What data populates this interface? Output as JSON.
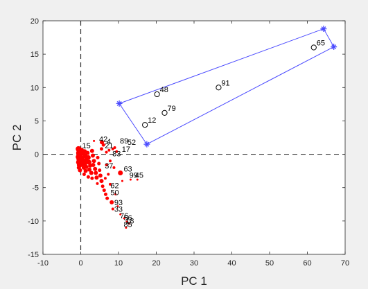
{
  "chart_data": {
    "type": "scatter",
    "xlabel": "PC 1",
    "ylabel": "PC 2",
    "xlim": [
      -10,
      70
    ],
    "ylim": [
      -15,
      20
    ],
    "xticks": [
      -10,
      0,
      10,
      20,
      30,
      40,
      50,
      60,
      70
    ],
    "yticks": [
      -15,
      -10,
      -5,
      0,
      5,
      10,
      15,
      20
    ],
    "reference_lines": {
      "x": 0,
      "y": 0,
      "style": "dashed"
    },
    "colors": {
      "points": "#ff0000",
      "outliers": "#000000",
      "hull": "#4a4aff",
      "background": "#ffffff",
      "figure": "#f0f0f0"
    },
    "outliers": [
      {
        "label": "65",
        "x": 61.7,
        "y": 16.0
      },
      {
        "label": "91",
        "x": 36.5,
        "y": 10.0
      },
      {
        "label": "48",
        "x": 20.2,
        "y": 9.0
      },
      {
        "label": "79",
        "x": 22.2,
        "y": 6.2
      },
      {
        "label": "12",
        "x": 17.0,
        "y": 4.4
      }
    ],
    "hull_vertices": [
      {
        "x": 10.2,
        "y": 7.6
      },
      {
        "x": 64.3,
        "y": 18.8
      },
      {
        "x": 67.0,
        "y": 16.1
      },
      {
        "x": 17.5,
        "y": 1.5
      }
    ],
    "labeled_points": [
      {
        "label": "42",
        "x": 4.5,
        "y": 2.0
      },
      {
        "label": "4",
        "x": 6.5,
        "y": 1.6
      },
      {
        "label": "89",
        "x": 10.0,
        "y": 1.7
      },
      {
        "label": "52",
        "x": 12.0,
        "y": 1.5
      },
      {
        "label": "15",
        "x": 0.0,
        "y": 1.0
      },
      {
        "label": "17",
        "x": 10.5,
        "y": 0.5
      },
      {
        "label": "21",
        "x": 6.0,
        "y": 1.0
      },
      {
        "label": "83",
        "x": 8.0,
        "y": -0.2
      },
      {
        "label": "63",
        "x": 11.0,
        "y": -2.5
      },
      {
        "label": "99",
        "x": 12.5,
        "y": -3.4
      },
      {
        "label": "45",
        "x": 14.0,
        "y": -3.4
      },
      {
        "label": "37",
        "x": 6.0,
        "y": -2.0
      },
      {
        "label": "62",
        "x": 7.5,
        "y": -5.0
      },
      {
        "label": "50",
        "x": 7.5,
        "y": -6.0
      },
      {
        "label": "93",
        "x": 8.5,
        "y": -7.5
      },
      {
        "label": "33",
        "x": 8.5,
        "y": -8.5
      },
      {
        "label": "76",
        "x": 10.0,
        "y": -9.5
      },
      {
        "label": "56",
        "x": 11.0,
        "y": -9.8
      },
      {
        "label": "18",
        "x": 11.5,
        "y": -10.3
      },
      {
        "label": "85",
        "x": 11.0,
        "y": -10.8
      }
    ],
    "points": [
      {
        "x": -0.6,
        "y": 0.8,
        "s": 4
      },
      {
        "x": -0.4,
        "y": 0.5,
        "s": 4
      },
      {
        "x": -0.5,
        "y": 0.2,
        "s": 4
      },
      {
        "x": -0.3,
        "y": -0.1,
        "s": 4
      },
      {
        "x": -0.6,
        "y": -0.4,
        "s": 4
      },
      {
        "x": -0.4,
        "y": -0.8,
        "s": 4
      },
      {
        "x": -0.5,
        "y": -1.2,
        "s": 4
      },
      {
        "x": -0.3,
        "y": -1.6,
        "s": 4
      },
      {
        "x": -0.5,
        "y": -2.0,
        "s": 3
      },
      {
        "x": -0.2,
        "y": -2.4,
        "s": 3
      },
      {
        "x": 0.2,
        "y": 0.6,
        "s": 3.5
      },
      {
        "x": 0.5,
        "y": 0.2,
        "s": 3.5
      },
      {
        "x": 0.3,
        "y": -0.5,
        "s": 3.5
      },
      {
        "x": 0.6,
        "y": -1.0,
        "s": 3.5
      },
      {
        "x": 0.4,
        "y": -1.5,
        "s": 3.5
      },
      {
        "x": 0.8,
        "y": -2.0,
        "s": 3
      },
      {
        "x": 1.0,
        "y": 0.4,
        "s": 3.5
      },
      {
        "x": 1.2,
        "y": -0.3,
        "s": 3.5
      },
      {
        "x": 1.4,
        "y": -0.9,
        "s": 3.5
      },
      {
        "x": 1.1,
        "y": -1.4,
        "s": 3.5
      },
      {
        "x": 1.5,
        "y": -1.9,
        "s": 3
      },
      {
        "x": 1.3,
        "y": -2.5,
        "s": 3
      },
      {
        "x": 1.8,
        "y": 0.2,
        "s": 3
      },
      {
        "x": 2.0,
        "y": -0.5,
        "s": 3.5
      },
      {
        "x": 2.2,
        "y": -1.2,
        "s": 3.5
      },
      {
        "x": 2.5,
        "y": -1.7,
        "s": 3
      },
      {
        "x": 2.3,
        "y": -2.3,
        "s": 3
      },
      {
        "x": 2.8,
        "y": -2.8,
        "s": 3
      },
      {
        "x": 3.0,
        "y": 0.5,
        "s": 3
      },
      {
        "x": 3.2,
        "y": -0.2,
        "s": 3
      },
      {
        "x": 3.5,
        "y": -1.0,
        "s": 3
      },
      {
        "x": 3.3,
        "y": -1.6,
        "s": 3
      },
      {
        "x": 3.8,
        "y": -2.2,
        "s": 3
      },
      {
        "x": 4.0,
        "y": -2.8,
        "s": 3
      },
      {
        "x": 4.2,
        "y": -3.5,
        "s": 3
      },
      {
        "x": 4.5,
        "y": -0.5,
        "s": 2.5
      },
      {
        "x": 4.8,
        "y": -1.4,
        "s": 2.5
      },
      {
        "x": 5.0,
        "y": -2.4,
        "s": 2.5
      },
      {
        "x": 5.2,
        "y": -3.2,
        "s": 3
      },
      {
        "x": 5.5,
        "y": -4.0,
        "s": 3
      },
      {
        "x": 5.8,
        "y": -4.8,
        "s": 2.5
      },
      {
        "x": 6.2,
        "y": -5.4,
        "s": 2.5
      },
      {
        "x": 6.6,
        "y": -6.0,
        "s": 2.5
      },
      {
        "x": 7.0,
        "y": -6.6,
        "s": 2.5
      },
      {
        "x": 7.3,
        "y": -3.0,
        "s": 2
      },
      {
        "x": 7.8,
        "y": -4.5,
        "s": 2
      },
      {
        "x": 8.2,
        "y": -7.2,
        "s": 3
      },
      {
        "x": 8.5,
        "y": -8.2,
        "s": 2
      },
      {
        "x": 6.0,
        "y": 1.4,
        "s": 2.5
      },
      {
        "x": 5.5,
        "y": 0.8,
        "s": 2.5
      },
      {
        "x": 6.8,
        "y": 0.3,
        "s": 2
      },
      {
        "x": 7.5,
        "y": 0.6,
        "s": 2
      },
      {
        "x": 8.5,
        "y": 0.8,
        "s": 2
      },
      {
        "x": 9.0,
        "y": 1.0,
        "s": 2
      },
      {
        "x": 9.5,
        "y": 0.4,
        "s": 2
      },
      {
        "x": 10.5,
        "y": -2.8,
        "s": 3.5
      },
      {
        "x": 11.0,
        "y": -4.0,
        "s": 1.5
      },
      {
        "x": 9.2,
        "y": -6.0,
        "s": 1.5
      },
      {
        "x": 9.8,
        "y": -7.8,
        "s": 1.5
      },
      {
        "x": 10.5,
        "y": -9.0,
        "s": 1.5
      },
      {
        "x": 11.5,
        "y": -9.6,
        "s": 1.5
      },
      {
        "x": 12.2,
        "y": -10.1,
        "s": 1.5
      },
      {
        "x": 12.8,
        "y": -10.4,
        "s": 1.5
      },
      {
        "x": 12.0,
        "y": -11.0,
        "s": 1.5
      },
      {
        "x": 13.2,
        "y": -3.8,
        "s": 1.5
      },
      {
        "x": 15.0,
        "y": -3.8,
        "s": 1.5
      },
      {
        "x": 3.5,
        "y": 2.0,
        "s": 1.5
      },
      {
        "x": 5.6,
        "y": 1.8,
        "s": 3
      },
      {
        "x": 0.9,
        "y": -3.0,
        "s": 2.5
      },
      {
        "x": 2.0,
        "y": -3.4,
        "s": 2.5
      },
      {
        "x": 3.0,
        "y": -3.6,
        "s": 2.5
      },
      {
        "x": 4.4,
        "y": -4.4,
        "s": 2
      },
      {
        "x": 6.8,
        "y": -1.6,
        "s": 2
      },
      {
        "x": 7.8,
        "y": -1.0,
        "s": 2
      },
      {
        "x": 8.8,
        "y": -2.0,
        "s": 2
      },
      {
        "x": 6.5,
        "y": -3.6,
        "s": 2
      }
    ]
  }
}
